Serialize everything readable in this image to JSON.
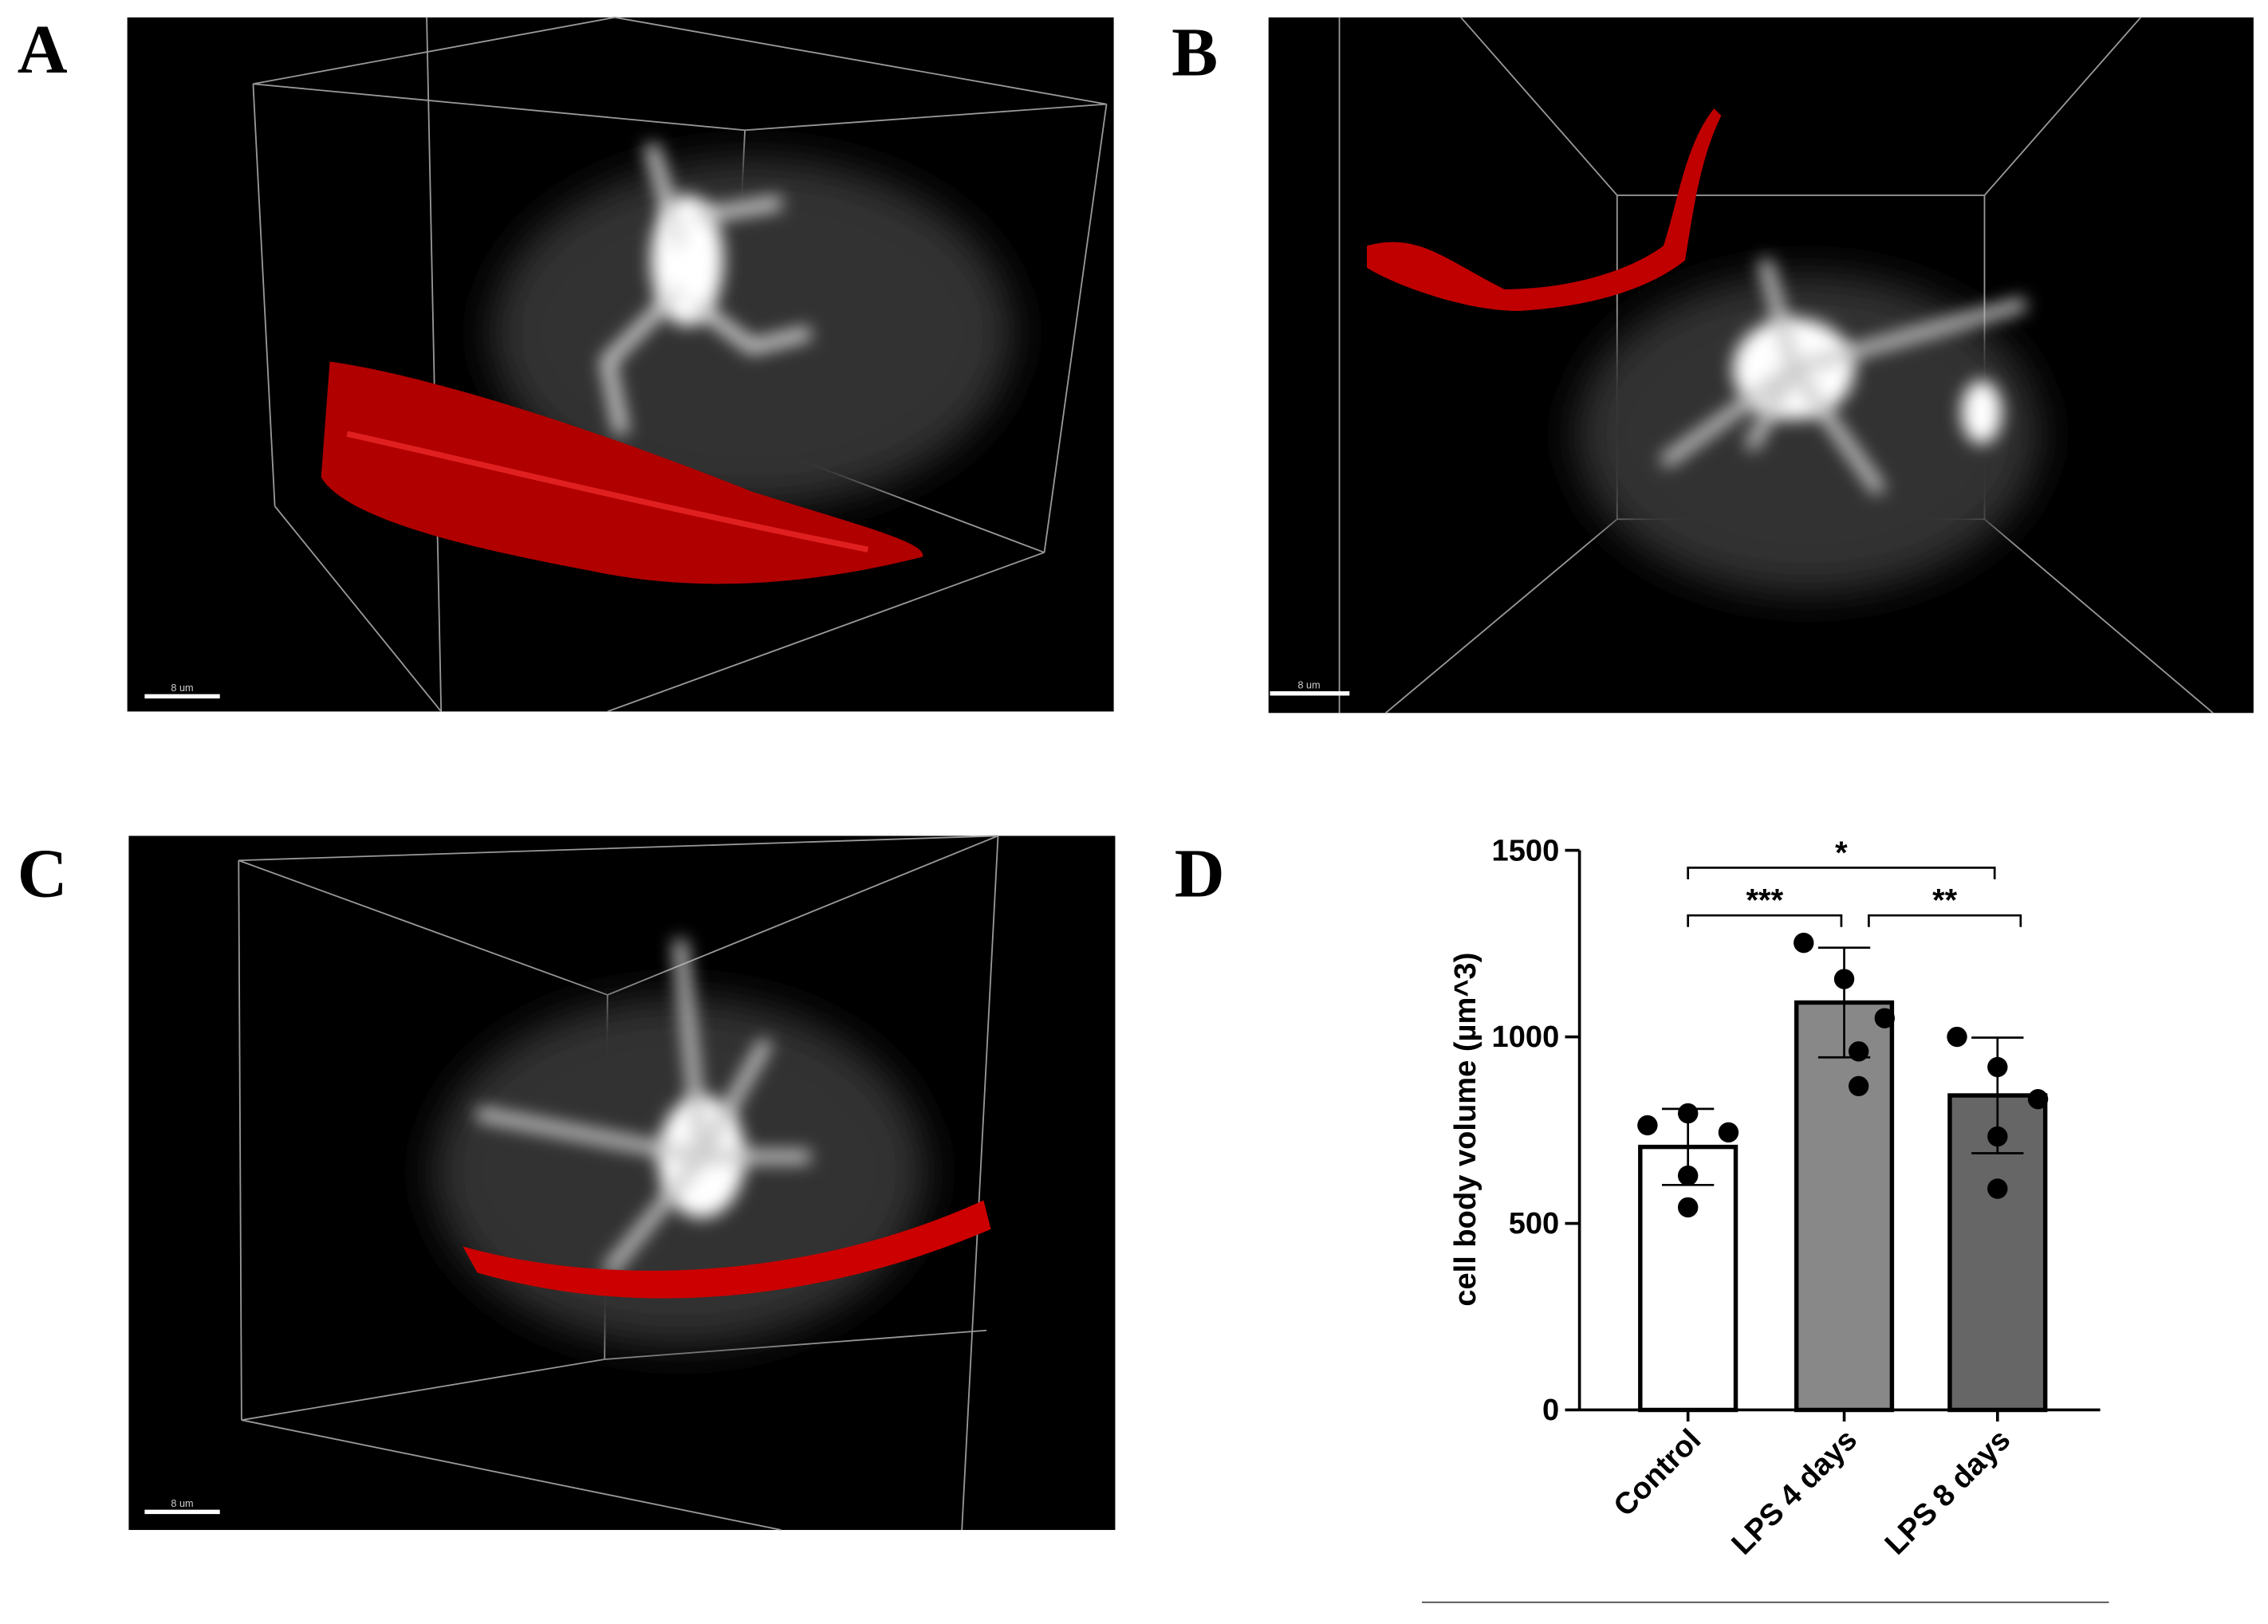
{
  "panels": [
    {
      "label": "A",
      "scale_bar": "8 um"
    },
    {
      "label": "B",
      "scale_bar": "8 um"
    },
    {
      "label": "C",
      "scale_bar": "8 um"
    },
    {
      "label": "D"
    }
  ],
  "chart_data": {
    "type": "bar",
    "ylabel": "cell body volume (µm^3)",
    "categories": [
      "Control",
      "LPS 4 days",
      "LPS 8 days"
    ],
    "values": [
      705,
      1092,
      843
    ],
    "errors": [
      102,
      147,
      155
    ],
    "colors": [
      "#ffffff",
      "#888888",
      "#666666"
    ],
    "points": [
      [
        763,
        795,
        744,
        628,
        543
      ],
      [
        1252,
        1155,
        1050,
        961,
        868
      ],
      [
        1000,
        919,
        833,
        733,
        593
      ]
    ],
    "ylim": [
      0,
      1500
    ],
    "yticks": [
      0,
      500,
      1000,
      1500
    ],
    "annotations": [
      {
        "text": "*",
        "from": "Control",
        "to": "LPS 8 days"
      },
      {
        "text": "***",
        "from": "Control",
        "to": "LPS 4 days"
      },
      {
        "text": "**",
        "from": "LPS 4 days",
        "to": "LPS 8 days"
      }
    ]
  }
}
